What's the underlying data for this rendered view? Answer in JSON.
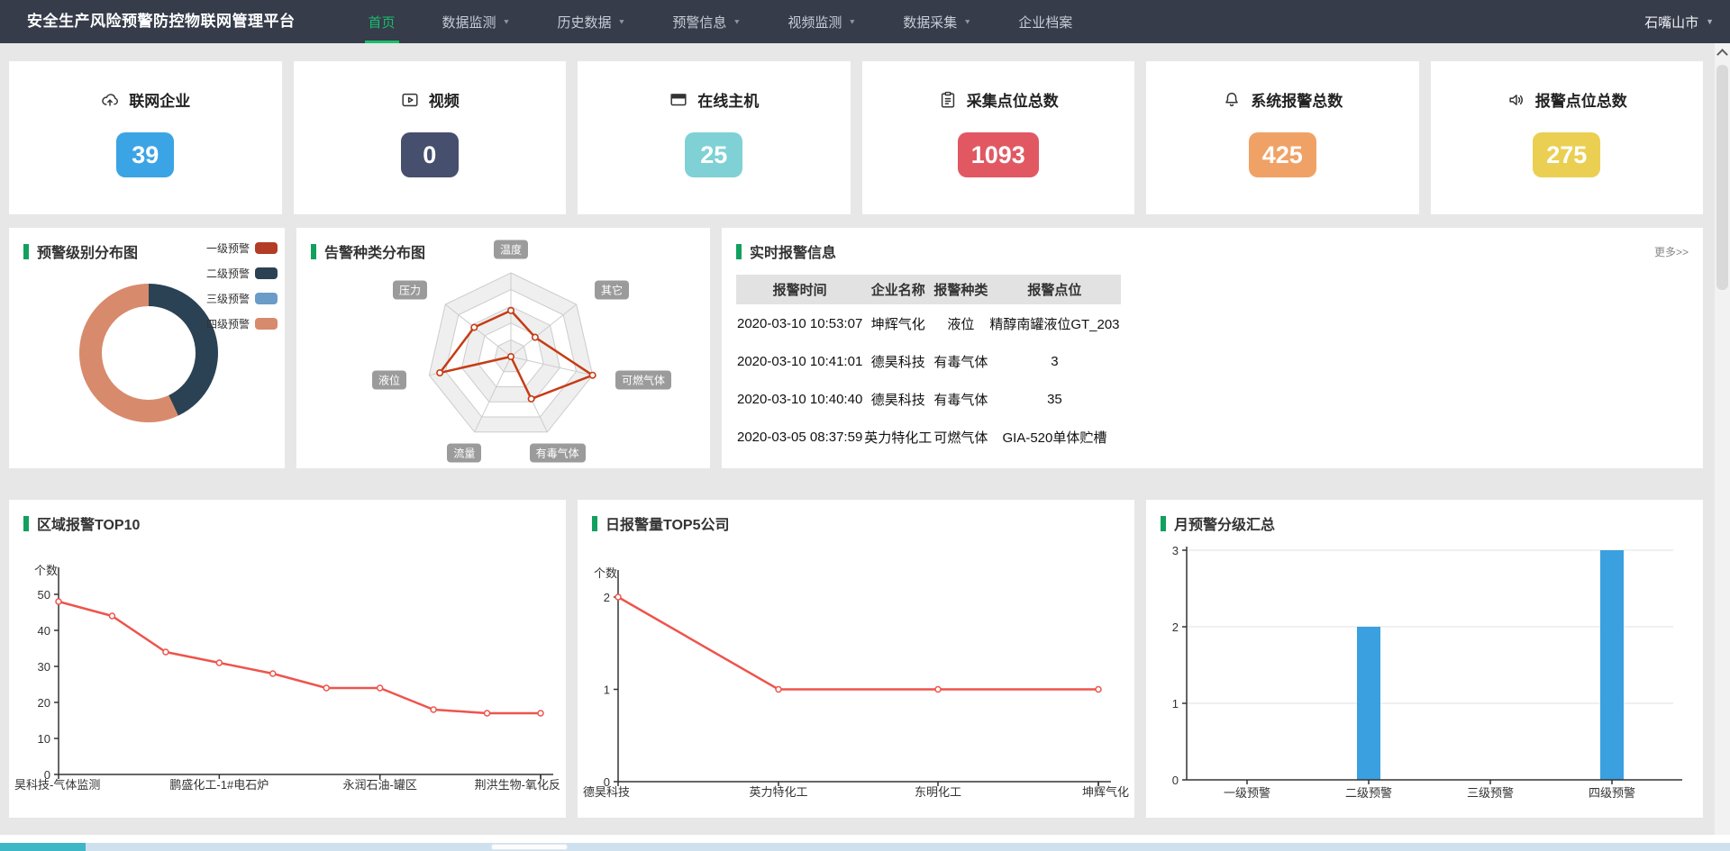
{
  "nav": {
    "title": "安全生产风险预警防控物联网管理平台",
    "items": [
      {
        "label": "首页",
        "name": "home",
        "active": true,
        "caret": false
      },
      {
        "label": "数据监测",
        "name": "data-monitor",
        "active": false,
        "caret": true
      },
      {
        "label": "历史数据",
        "name": "history-data",
        "active": false,
        "caret": true
      },
      {
        "label": "预警信息",
        "name": "warning-info",
        "active": false,
        "caret": true
      },
      {
        "label": "视频监测",
        "name": "video-monitor",
        "active": false,
        "caret": true
      },
      {
        "label": "数据采集",
        "name": "data-collect",
        "active": false,
        "caret": true
      },
      {
        "label": "企业档案",
        "name": "enterprise-archive",
        "active": false,
        "caret": false
      }
    ],
    "region": "石嘴山市"
  },
  "stats": [
    {
      "label": "联网企业",
      "value": "39",
      "color": "#3ba4e4",
      "icon": "cloud-upload-icon"
    },
    {
      "label": "视频",
      "value": "0",
      "color": "#474f6e",
      "icon": "video-icon"
    },
    {
      "label": "在线主机",
      "value": "25",
      "color": "#7fd1d5",
      "icon": "monitor-icon"
    },
    {
      "label": "采集点位总数",
      "value": "1093",
      "color": "#e15863",
      "icon": "clipboard-icon"
    },
    {
      "label": "系统报警总数",
      "value": "425",
      "color": "#f0a266",
      "icon": "bell-icon"
    },
    {
      "label": "报警点位总数",
      "value": "275",
      "color": "#eacf52",
      "icon": "speaker-icon"
    }
  ],
  "alarm_table": {
    "title": "实时报警信息",
    "more_label": "更多>>",
    "headers": [
      "报警时间",
      "企业名称",
      "报警种类",
      "报警点位"
    ],
    "rows": [
      [
        "2020-03-10 10:53:07",
        "坤辉气化",
        "液位",
        "精醇南罐液位GT_203"
      ],
      [
        "2020-03-10 10:41:01",
        "德昊科技",
        "有毒气体",
        "3"
      ],
      [
        "2020-03-10 10:40:40",
        "德昊科技",
        "有毒气体",
        "35"
      ],
      [
        "2020-03-05 08:37:59",
        "英力特化工",
        "可燃气体",
        "GIA-520单体贮槽"
      ]
    ]
  },
  "chart_data": [
    {
      "type": "pie",
      "title": "预警级别分布图",
      "labels": [
        "一级预警",
        "二级预警",
        "三级预警",
        "四级预警"
      ],
      "values": [
        0,
        43,
        0,
        57
      ],
      "unit": "percent-estimated",
      "colors": [
        "#b23c26",
        "#2b4254",
        "#6b9bc7",
        "#d88a6c"
      ],
      "donut": true,
      "legend_position": "top-right"
    },
    {
      "type": "radar",
      "title": "告警种类分布图",
      "axes": [
        "温度",
        "其它",
        "可燃气体",
        "有毒气体",
        "流量",
        "液位",
        "压力"
      ],
      "values": [
        0.55,
        0.37,
        1.0,
        0.56,
        0.0,
        0.87,
        0.56
      ],
      "max": 1,
      "levels": 5,
      "line_color": "#c63c15"
    },
    {
      "type": "line",
      "title": "区域报警TOP10",
      "ylabel": "个数",
      "yticks": [
        0,
        10,
        20,
        30,
        40,
        50
      ],
      "categories": [
        "昊科技-气体监测",
        "",
        "",
        "鹏盛化工-1#电石炉",
        "",
        "",
        "永润石油-罐区",
        "",
        "",
        "荆洪生物-氧化反"
      ],
      "values": [
        48,
        44,
        34,
        31,
        28,
        24,
        24,
        18,
        17,
        17
      ],
      "line_color": "#ee544c",
      "grid": false
    },
    {
      "type": "line",
      "title": "日报警量TOP5公司",
      "ylabel": "个数",
      "yticks": [
        0,
        1,
        2
      ],
      "categories": [
        "德昊科技",
        "英力特化工",
        "东明化工",
        "坤辉气化"
      ],
      "values": [
        2,
        1,
        1,
        1
      ],
      "line_color": "#ee544c",
      "grid": false
    },
    {
      "type": "bar",
      "title": "月预警分级汇总",
      "ylabel": "",
      "yticks": [
        0,
        1,
        2,
        3
      ],
      "categories": [
        "一级预警",
        "二级预警",
        "三级预警",
        "四级预警"
      ],
      "values": [
        0,
        2,
        0,
        3
      ],
      "bar_color": "#3aa0e0",
      "grid": true
    }
  ],
  "colors": {
    "nav_bg": "#363c4a",
    "accent_green": "#19be6b",
    "title_bar_green": "#12a05f",
    "page_bg": "#e7e7e7",
    "table_header_bg": "#e2e2e2",
    "hscroll_track": "#cfe1ef",
    "hscroll_teal": "#3db6c5"
  }
}
